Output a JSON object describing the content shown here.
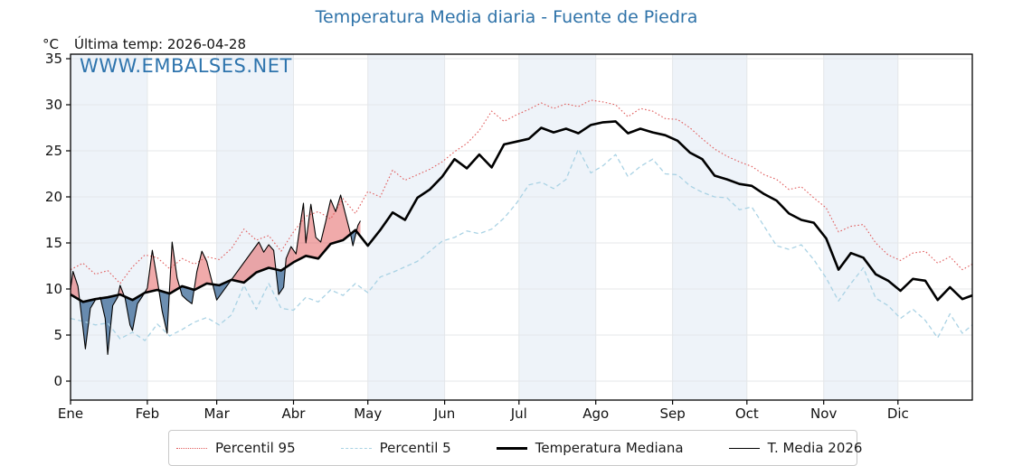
{
  "header": {
    "title": "Temperatura Media diaria - Fuente de Piedra",
    "unit_label": "°C",
    "subtitle": "Última temp: 2026-04-28",
    "watermark": "WWW.EMBALSES.NET"
  },
  "colors": {
    "title_blue": "#2f73a9",
    "watermark_blue": "#2e74ad",
    "p95_red": "#e05c5c",
    "p5_blue": "#a9d2e4",
    "median_black": "#000000",
    "t2026_black": "#000000",
    "fill_above_median": "rgba(225,85,85,0.5)",
    "fill_below_median": "rgba(40,90,140,0.68)",
    "month_band": "#eef3f9",
    "gridline": "#e4e7ea",
    "axis_frame": "#000000"
  },
  "chart_data": {
    "type": "line",
    "title": "Temperatura Media diaria - Fuente de Piedra",
    "xlabel": "",
    "ylabel": "°C",
    "x_unit": "day_of_year",
    "ylim": [
      -2,
      35.5
    ],
    "yticks": [
      0,
      5,
      10,
      15,
      20,
      25,
      30,
      35
    ],
    "grid": true,
    "month_labels": [
      "Ene",
      "Feb",
      "Mar",
      "Abr",
      "May",
      "Jun",
      "Jul",
      "Ago",
      "Sep",
      "Oct",
      "Nov",
      "Dic"
    ],
    "month_start_days": [
      1,
      32,
      60,
      91,
      121,
      152,
      182,
      213,
      244,
      274,
      305,
      335
    ],
    "shaded_months_indices": [
      0,
      2,
      4,
      6,
      8,
      10
    ],
    "legend_position": "bottom",
    "last_data_note": "T. Media 2026 ends 2026-04-28 (day 118); straight segment days 60-77 is a data gap",
    "series": [
      {
        "name": "Percentil 95",
        "style": "dotted",
        "color": "#e05c5c",
        "points": [
          [
            1,
            12.1
          ],
          [
            6,
            12.8
          ],
          [
            11,
            11.6
          ],
          [
            16,
            12.0
          ],
          [
            21,
            10.6
          ],
          [
            26,
            12.4
          ],
          [
            31,
            13.7
          ],
          [
            36,
            13.4
          ],
          [
            41,
            12.2
          ],
          [
            46,
            13.3
          ],
          [
            51,
            12.7
          ],
          [
            56,
            13.5
          ],
          [
            61,
            13.2
          ],
          [
            66,
            14.4
          ],
          [
            71,
            16.5
          ],
          [
            76,
            15.3
          ],
          [
            81,
            15.8
          ],
          [
            86,
            14.1
          ],
          [
            91,
            16.2
          ],
          [
            96,
            17.9
          ],
          [
            101,
            18.4
          ],
          [
            106,
            17.6
          ],
          [
            111,
            19.8
          ],
          [
            116,
            18.2
          ],
          [
            121,
            20.6
          ],
          [
            126,
            20.0
          ],
          [
            131,
            22.9
          ],
          [
            136,
            21.8
          ],
          [
            141,
            22.4
          ],
          [
            146,
            23.0
          ],
          [
            151,
            23.8
          ],
          [
            156,
            24.9
          ],
          [
            161,
            25.8
          ],
          [
            166,
            27.2
          ],
          [
            171,
            29.3
          ],
          [
            176,
            28.2
          ],
          [
            181,
            28.9
          ],
          [
            186,
            29.5
          ],
          [
            191,
            30.2
          ],
          [
            196,
            29.6
          ],
          [
            201,
            30.1
          ],
          [
            206,
            29.8
          ],
          [
            211,
            30.5
          ],
          [
            216,
            30.3
          ],
          [
            221,
            30.0
          ],
          [
            226,
            28.7
          ],
          [
            231,
            29.6
          ],
          [
            236,
            29.3
          ],
          [
            241,
            28.5
          ],
          [
            246,
            28.4
          ],
          [
            251,
            27.5
          ],
          [
            256,
            26.3
          ],
          [
            261,
            25.2
          ],
          [
            266,
            24.4
          ],
          [
            271,
            23.8
          ],
          [
            276,
            23.3
          ],
          [
            281,
            22.4
          ],
          [
            286,
            21.9
          ],
          [
            291,
            20.8
          ],
          [
            296,
            21.1
          ],
          [
            301,
            19.9
          ],
          [
            306,
            18.8
          ],
          [
            311,
            16.2
          ],
          [
            316,
            16.8
          ],
          [
            321,
            17.0
          ],
          [
            326,
            15.0
          ],
          [
            331,
            13.7
          ],
          [
            336,
            13.1
          ],
          [
            341,
            13.9
          ],
          [
            346,
            14.1
          ],
          [
            351,
            12.8
          ],
          [
            356,
            13.5
          ],
          [
            361,
            12.1
          ],
          [
            365,
            12.7
          ]
        ]
      },
      {
        "name": "Percentil 5",
        "style": "dashed",
        "color": "#a9d2e4",
        "points": [
          [
            1,
            6.8
          ],
          [
            6,
            6.5
          ],
          [
            11,
            6.1
          ],
          [
            16,
            6.3
          ],
          [
            21,
            4.6
          ],
          [
            26,
            5.3
          ],
          [
            31,
            4.4
          ],
          [
            36,
            6.2
          ],
          [
            41,
            4.9
          ],
          [
            46,
            5.6
          ],
          [
            51,
            6.4
          ],
          [
            56,
            6.9
          ],
          [
            61,
            6.1
          ],
          [
            66,
            7.2
          ],
          [
            71,
            10.4
          ],
          [
            76,
            7.8
          ],
          [
            81,
            10.6
          ],
          [
            86,
            7.9
          ],
          [
            91,
            7.7
          ],
          [
            96,
            9.1
          ],
          [
            101,
            8.6
          ],
          [
            106,
            9.9
          ],
          [
            111,
            9.3
          ],
          [
            116,
            10.6
          ],
          [
            121,
            9.6
          ],
          [
            126,
            11.3
          ],
          [
            131,
            11.8
          ],
          [
            136,
            12.4
          ],
          [
            141,
            13.0
          ],
          [
            146,
            14.1
          ],
          [
            151,
            15.2
          ],
          [
            156,
            15.6
          ],
          [
            161,
            16.3
          ],
          [
            166,
            16.0
          ],
          [
            171,
            16.5
          ],
          [
            176,
            17.7
          ],
          [
            181,
            19.3
          ],
          [
            186,
            21.3
          ],
          [
            191,
            21.6
          ],
          [
            196,
            20.9
          ],
          [
            201,
            21.9
          ],
          [
            206,
            25.2
          ],
          [
            211,
            22.6
          ],
          [
            216,
            23.4
          ],
          [
            221,
            24.6
          ],
          [
            226,
            22.2
          ],
          [
            231,
            23.3
          ],
          [
            236,
            24.1
          ],
          [
            241,
            22.5
          ],
          [
            246,
            22.4
          ],
          [
            251,
            21.2
          ],
          [
            256,
            20.5
          ],
          [
            261,
            20.0
          ],
          [
            266,
            19.9
          ],
          [
            271,
            18.6
          ],
          [
            276,
            18.9
          ],
          [
            281,
            16.8
          ],
          [
            286,
            14.7
          ],
          [
            291,
            14.3
          ],
          [
            296,
            14.8
          ],
          [
            301,
            13.2
          ],
          [
            306,
            11.2
          ],
          [
            311,
            8.7
          ],
          [
            316,
            10.6
          ],
          [
            321,
            12.3
          ],
          [
            326,
            9.0
          ],
          [
            331,
            8.2
          ],
          [
            336,
            6.8
          ],
          [
            341,
            7.8
          ],
          [
            346,
            6.6
          ],
          [
            351,
            4.7
          ],
          [
            356,
            7.3
          ],
          [
            361,
            5.2
          ],
          [
            365,
            6.1
          ]
        ]
      },
      {
        "name": "Temperatura Mediana",
        "style": "solid-thick",
        "color": "#000000",
        "points": [
          [
            1,
            9.4
          ],
          [
            6,
            8.6
          ],
          [
            11,
            8.9
          ],
          [
            16,
            9.1
          ],
          [
            21,
            9.4
          ],
          [
            26,
            8.8
          ],
          [
            31,
            9.6
          ],
          [
            36,
            9.9
          ],
          [
            41,
            9.5
          ],
          [
            46,
            10.3
          ],
          [
            51,
            9.9
          ],
          [
            56,
            10.6
          ],
          [
            61,
            10.4
          ],
          [
            66,
            11.0
          ],
          [
            71,
            10.7
          ],
          [
            76,
            11.8
          ],
          [
            81,
            12.3
          ],
          [
            86,
            12.0
          ],
          [
            91,
            12.9
          ],
          [
            96,
            13.6
          ],
          [
            101,
            13.3
          ],
          [
            106,
            14.9
          ],
          [
            111,
            15.3
          ],
          [
            116,
            16.4
          ],
          [
            121,
            14.7
          ],
          [
            126,
            16.4
          ],
          [
            131,
            18.3
          ],
          [
            136,
            17.5
          ],
          [
            141,
            19.9
          ],
          [
            146,
            20.8
          ],
          [
            151,
            22.2
          ],
          [
            156,
            24.1
          ],
          [
            161,
            23.1
          ],
          [
            166,
            24.6
          ],
          [
            171,
            23.2
          ],
          [
            176,
            25.7
          ],
          [
            181,
            26.0
          ],
          [
            186,
            26.3
          ],
          [
            191,
            27.5
          ],
          [
            196,
            27.0
          ],
          [
            201,
            27.4
          ],
          [
            206,
            26.9
          ],
          [
            211,
            27.8
          ],
          [
            216,
            28.1
          ],
          [
            221,
            28.2
          ],
          [
            226,
            26.9
          ],
          [
            231,
            27.4
          ],
          [
            236,
            27.0
          ],
          [
            241,
            26.7
          ],
          [
            246,
            26.1
          ],
          [
            251,
            24.8
          ],
          [
            256,
            24.1
          ],
          [
            261,
            22.3
          ],
          [
            266,
            21.9
          ],
          [
            271,
            21.4
          ],
          [
            276,
            21.2
          ],
          [
            281,
            20.3
          ],
          [
            286,
            19.6
          ],
          [
            291,
            18.2
          ],
          [
            296,
            17.5
          ],
          [
            301,
            17.2
          ],
          [
            306,
            15.5
          ],
          [
            311,
            12.1
          ],
          [
            316,
            13.9
          ],
          [
            321,
            13.4
          ],
          [
            326,
            11.6
          ],
          [
            331,
            10.9
          ],
          [
            336,
            9.8
          ],
          [
            341,
            11.1
          ],
          [
            346,
            10.9
          ],
          [
            351,
            8.8
          ],
          [
            356,
            10.2
          ],
          [
            361,
            8.9
          ],
          [
            365,
            9.3
          ]
        ]
      },
      {
        "name": "T. Media 2026",
        "style": "solid-thin",
        "color": "#000000",
        "fill_above": "rgba(225,85,85,0.5)",
        "fill_below": "rgba(40,90,140,0.68)",
        "points": [
          [
            1,
            10.0
          ],
          [
            2,
            11.9
          ],
          [
            4,
            10.3
          ],
          [
            6,
            5.8
          ],
          [
            7,
            3.5
          ],
          [
            9,
            7.9
          ],
          [
            11,
            8.8
          ],
          [
            13,
            9.1
          ],
          [
            15,
            6.8
          ],
          [
            16,
            2.9
          ],
          [
            18,
            8.2
          ],
          [
            20,
            9.1
          ],
          [
            21,
            10.4
          ],
          [
            23,
            9.0
          ],
          [
            25,
            6.1
          ],
          [
            26,
            5.5
          ],
          [
            28,
            8.4
          ],
          [
            30,
            9.2
          ],
          [
            32,
            10.1
          ],
          [
            34,
            14.2
          ],
          [
            36,
            11.0
          ],
          [
            38,
            7.6
          ],
          [
            40,
            5.2
          ],
          [
            42,
            15.1
          ],
          [
            44,
            11.2
          ],
          [
            46,
            9.3
          ],
          [
            48,
            8.8
          ],
          [
            50,
            8.4
          ],
          [
            52,
            11.9
          ],
          [
            54,
            14.1
          ],
          [
            56,
            13.0
          ],
          [
            58,
            10.9
          ],
          [
            60,
            8.8
          ],
          [
            77,
            15.1
          ],
          [
            79,
            14.0
          ],
          [
            81,
            14.8
          ],
          [
            83,
            14.2
          ],
          [
            85,
            9.4
          ],
          [
            87,
            10.2
          ],
          [
            88,
            13.3
          ],
          [
            90,
            14.6
          ],
          [
            92,
            13.8
          ],
          [
            94,
            17.5
          ],
          [
            95,
            19.3
          ],
          [
            96,
            15.0
          ],
          [
            98,
            19.2
          ],
          [
            100,
            15.6
          ],
          [
            102,
            15.1
          ],
          [
            104,
            17.3
          ],
          [
            106,
            19.7
          ],
          [
            108,
            18.4
          ],
          [
            110,
            20.2
          ],
          [
            112,
            18.1
          ],
          [
            114,
            16.0
          ],
          [
            115,
            14.7
          ],
          [
            117,
            16.9
          ],
          [
            118,
            17.4
          ]
        ]
      }
    ],
    "legend": [
      "Percentil 95",
      "Percentil 5",
      "Temperatura Mediana",
      "T. Media 2026"
    ]
  }
}
